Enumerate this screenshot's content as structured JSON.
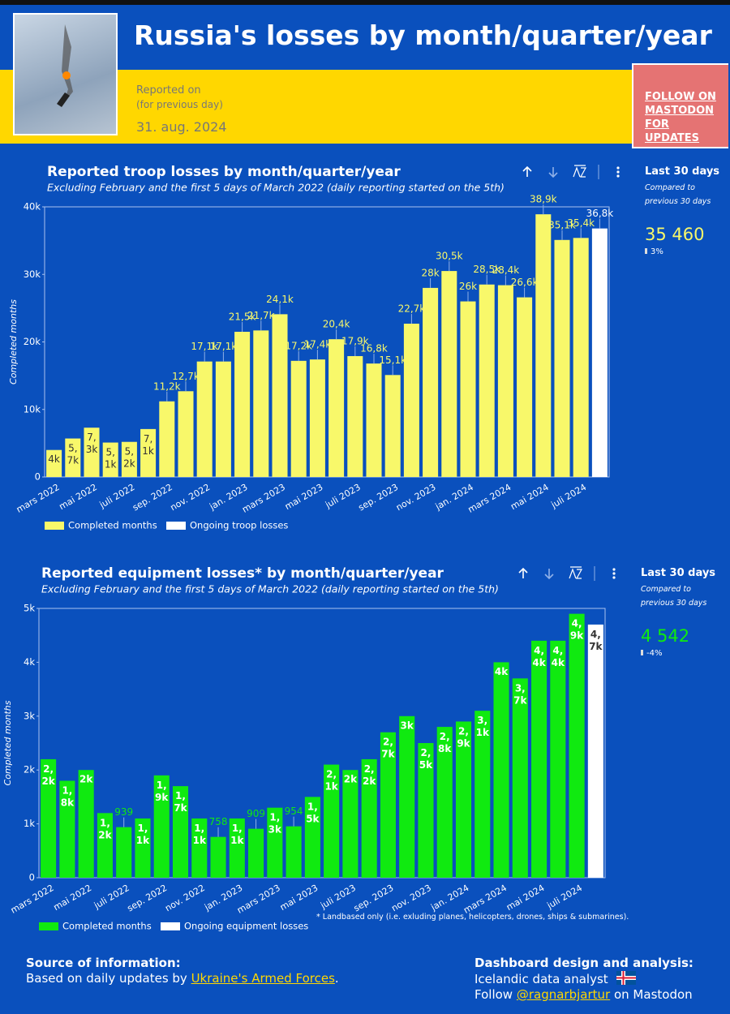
{
  "header": {
    "title": "Russia's losses by month/quarter/year",
    "reported_on": "Reported on",
    "reported_note": "(for previous day)",
    "date": "31. aug. 2024",
    "follow": "FOLLOW ON MASTODON FOR UPDATES"
  },
  "chart_data": [
    {
      "type": "bar",
      "title": "Reported troop losses by month/quarter/year",
      "subtitle": "Excluding February and the first 5 days of March 2022 (daily reporting started on the 5th)",
      "ylabel": "Completed months",
      "categories": [
        "mars 2022",
        null,
        "mai 2022",
        null,
        "juli 2022",
        null,
        "sep. 2022",
        null,
        "nov. 2022",
        null,
        "jan. 2023",
        null,
        "mars 2023",
        null,
        "mai 2023",
        null,
        "juli 2023",
        null,
        "sep. 2023",
        null,
        "nov. 2023",
        null,
        "jan. 2024",
        null,
        "mars 2024",
        null,
        "mai 2024",
        null,
        "juli 2024",
        null
      ],
      "series": [
        {
          "name": "Completed months",
          "color": "#f8f86a",
          "values": [
            4000,
            5700,
            7300,
            5100,
            5200,
            7100,
            11200,
            12700,
            17100,
            17100,
            21500,
            21700,
            24100,
            17200,
            17400,
            20400,
            17900,
            16800,
            15100,
            22700,
            28000,
            30500,
            26000,
            28500,
            28400,
            26600,
            38900,
            35100,
            35400,
            null
          ],
          "value_labels": [
            "4k",
            "5,7k",
            "7,3k",
            "5,1k",
            "5,2k",
            "7,1k",
            "11,2k",
            "12,7k",
            "17,1k",
            "17,1k",
            "21,5k",
            "21,7k",
            "24,1k",
            "17,2k",
            "17,4k",
            "20,4k",
            "17,9k",
            "16,8k",
            "15,1k",
            "22,7k",
            "28k",
            "30,5k",
            "26k",
            "28,5k",
            "28,4k",
            "26,6k",
            "38,9k",
            "35,1k",
            "35,4k",
            null
          ]
        },
        {
          "name": "Ongoing troop losses",
          "color": "#ffffff",
          "values": [
            null,
            null,
            null,
            null,
            null,
            null,
            null,
            null,
            null,
            null,
            null,
            null,
            null,
            null,
            null,
            null,
            null,
            null,
            null,
            null,
            null,
            null,
            null,
            null,
            null,
            null,
            null,
            null,
            null,
            36800
          ],
          "value_labels": [
            null,
            null,
            null,
            null,
            null,
            null,
            null,
            null,
            null,
            null,
            null,
            null,
            null,
            null,
            null,
            null,
            null,
            null,
            null,
            null,
            null,
            null,
            null,
            null,
            null,
            null,
            null,
            null,
            null,
            "36,8k"
          ]
        }
      ],
      "ylim": [
        0,
        40000
      ],
      "yticks": [
        0,
        {
          "value": 10000,
          "label": "10k"
        },
        {
          "value": 20000,
          "label": "20k"
        },
        {
          "value": 30000,
          "label": "30k"
        },
        {
          "value": 40000,
          "label": "40k"
        }
      ],
      "last_30": {
        "title": "Last 30 days",
        "note": "Compared to previous 30 days",
        "value": "35 460",
        "change": "3%"
      }
    },
    {
      "type": "bar",
      "title": "Reported equipment losses* by month/quarter/year",
      "subtitle": "Excluding February and the first 5 days of March 2022 (daily reporting started on the 5th)",
      "ylabel": "Completed months",
      "categories": [
        "mars 2022",
        null,
        "mai 2022",
        null,
        "juli 2022",
        null,
        "sep. 2022",
        null,
        "nov. 2022",
        null,
        "jan. 2023",
        null,
        "mars 2023",
        null,
        "mai 2023",
        null,
        "juli 2023",
        null,
        "sep. 2023",
        null,
        "nov. 2023",
        null,
        "jan. 2024",
        null,
        "mars 2024",
        null,
        "mai 2024",
        null,
        "juli 2024",
        null
      ],
      "series": [
        {
          "name": "Completed months",
          "color": "#10ea10",
          "values": [
            2200,
            1800,
            2000,
            1200,
            939,
            1100,
            1900,
            1700,
            1100,
            758,
            1100,
            909,
            1300,
            954,
            1500,
            2100,
            2000,
            2200,
            2700,
            3000,
            2500,
            2800,
            2900,
            3100,
            4000,
            3700,
            4400,
            4400,
            4900,
            null
          ],
          "value_labels": [
            "2,2k",
            "1,8k",
            "2k",
            "1,2k",
            "939",
            "1,1k",
            "1,9k",
            "1,7k",
            "1,1k",
            "758",
            "1,1k",
            "909",
            "1,3k",
            "954",
            "1,5k",
            "2,1k",
            "2k",
            "2,2k",
            "2,7k",
            "3k",
            "2,5k",
            "2,8k",
            "2,9k",
            "3,1k",
            "4k",
            "3,7k",
            "4,4k",
            "4,4k",
            "4,9k",
            null
          ]
        },
        {
          "name": "Ongoing equipment losses",
          "color": "#ffffff",
          "values": [
            null,
            null,
            null,
            null,
            null,
            null,
            null,
            null,
            null,
            null,
            null,
            null,
            null,
            null,
            null,
            null,
            null,
            null,
            null,
            null,
            null,
            null,
            null,
            null,
            null,
            null,
            null,
            null,
            null,
            4700
          ],
          "value_labels": [
            null,
            null,
            null,
            null,
            null,
            null,
            null,
            null,
            null,
            null,
            null,
            null,
            null,
            null,
            null,
            null,
            null,
            null,
            null,
            null,
            null,
            null,
            null,
            null,
            null,
            null,
            null,
            null,
            null,
            "4,7k"
          ]
        }
      ],
      "ylim": [
        0,
        5000
      ],
      "yticks": [
        0,
        {
          "value": 1000,
          "label": "1k"
        },
        {
          "value": 2000,
          "label": "2k"
        },
        {
          "value": 3000,
          "label": "3k"
        },
        {
          "value": 4000,
          "label": "4k"
        },
        {
          "value": 5000,
          "label": "5k"
        }
      ],
      "last_30": {
        "title": "Last 30 days",
        "note": "Compared to previous 30 days",
        "value": "4 542",
        "change": "-4%"
      }
    }
  ],
  "footnote": "* Landbased only (i.e. exluding planes, helicopters, drones, ships & submarines).",
  "footer": {
    "source_title": "Source of information:",
    "source_text": "Based on daily updates by",
    "source_link": "Ukraine's Armed Forces",
    "source_end": ".",
    "design_title": "Dashboard design and analysis:",
    "design_text": "Icelandic data analyst",
    "follow": "Follow",
    "handle": "@ragnarbjartur",
    "follow_end": "on Mastodon"
  }
}
